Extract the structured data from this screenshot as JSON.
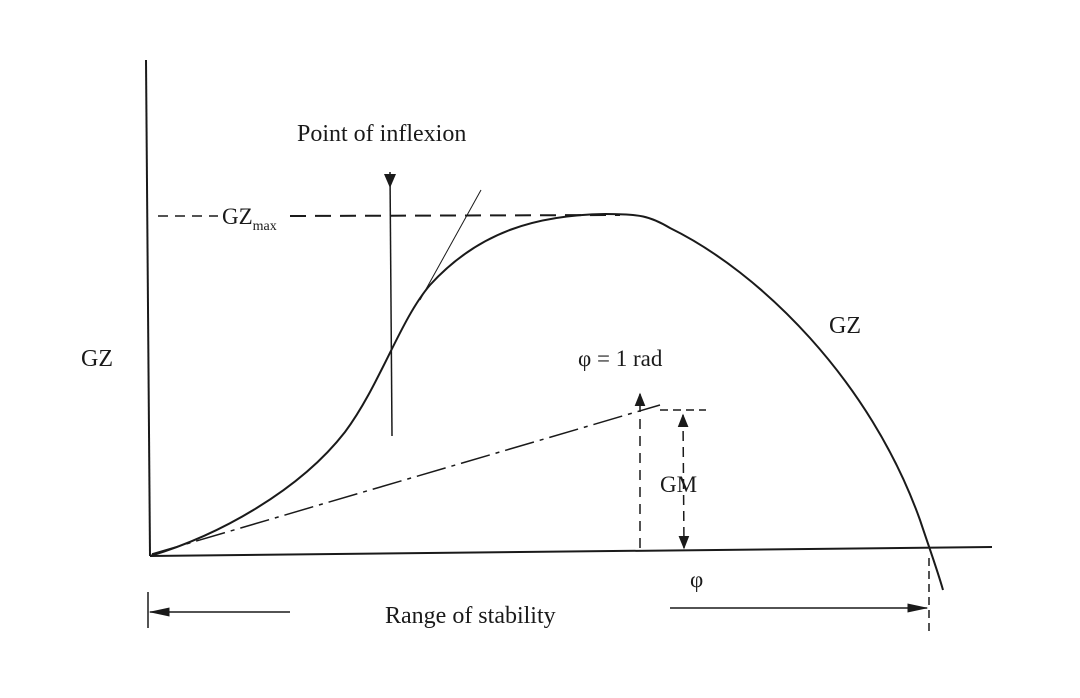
{
  "diagram": {
    "labels": {
      "inflexion": "Point of inflexion",
      "gzmax_main": "GZ",
      "gzmax_sub": "max",
      "y_axis": "GZ",
      "curve": "GZ",
      "one_rad": "φ = 1 rad",
      "gm": "GM",
      "x_axis": "φ",
      "range": "Range of stability"
    },
    "colors": {
      "ink": "#1a1a1a",
      "background": "#ffffff"
    }
  }
}
